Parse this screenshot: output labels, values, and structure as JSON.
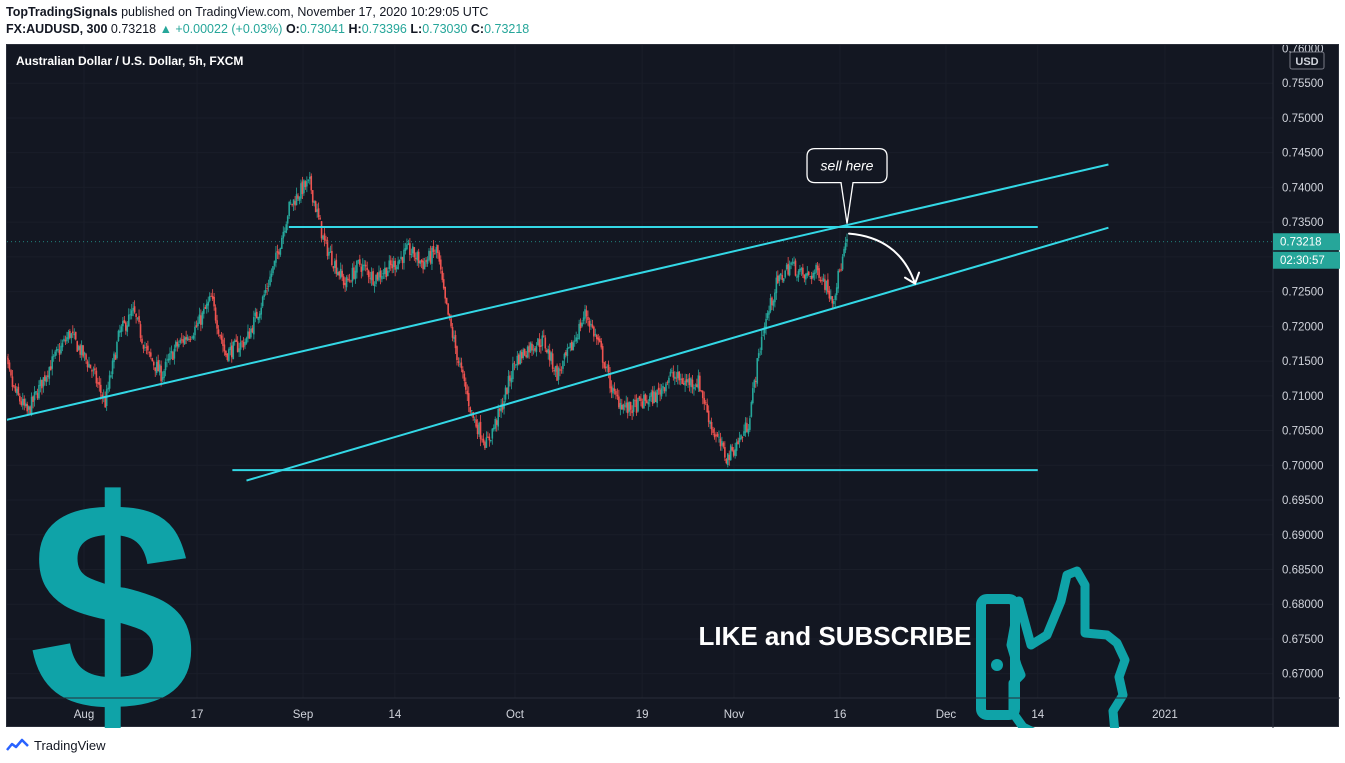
{
  "header": {
    "author": "TopTradingSignals",
    "published": "published on TradingView.com, November 17, 2020 10:29:05 UTC",
    "symbol": "FX:AUDUSD, 300",
    "last": "0.73218",
    "change": "▲ +0.00022 (+0.03%)",
    "o_label": "O:",
    "o": "0.73041",
    "h_label": "H:",
    "h": "0.73396",
    "l_label": "L:",
    "l": "0.73030",
    "c_label": "C:",
    "c": "0.73218"
  },
  "chart_data": {
    "type": "candlestick",
    "title": "Australian Dollar / U.S. Dollar, 5h, FXCM",
    "currency": "USD",
    "y_ticks": [
      "0.75500",
      "0.75000",
      "0.74500",
      "0.74000",
      "0.73500",
      "0.73000",
      "0.72500",
      "0.72000",
      "0.71500",
      "0.71000",
      "0.70500",
      "0.70000",
      "0.69500",
      "0.69000",
      "0.68500",
      "0.68000",
      "0.67500",
      "0.67000"
    ],
    "y_top_partial": "0.76000",
    "ylim": [
      0.6665,
      0.7605
    ],
    "x_ticks": [
      "Aug",
      "17",
      "Sep",
      "14",
      "Oct",
      "19",
      "Nov",
      "16",
      "Dec",
      "14",
      "2021"
    ],
    "x_tick_dates": [
      "2020-08-01",
      "2020-08-17",
      "2020-09-01",
      "2020-09-14",
      "2020-10-01",
      "2020-10-19",
      "2020-11-01",
      "2020-11-16",
      "2020-12-01",
      "2020-12-14",
      "2021-01-01"
    ],
    "price_label": "0.73218",
    "countdown_label": "02:30:57",
    "colors": {
      "up": "#26a69a",
      "down": "#ef5350",
      "line": "#33d8e6",
      "accent": "#0fa3a8",
      "price_tag": "#26a69a"
    },
    "price_path": [
      [
        "2020-07-20",
        0.718
      ],
      [
        "2020-07-22",
        0.711
      ],
      [
        "2020-07-24",
        0.7075
      ],
      [
        "2020-07-27",
        0.714
      ],
      [
        "2020-07-30",
        0.719
      ],
      [
        "2020-08-02",
        0.714
      ],
      [
        "2020-08-04",
        0.709
      ],
      [
        "2020-08-06",
        0.719
      ],
      [
        "2020-08-08",
        0.722
      ],
      [
        "2020-08-10",
        0.716
      ],
      [
        "2020-08-12",
        0.713
      ],
      [
        "2020-08-14",
        0.717
      ],
      [
        "2020-08-17",
        0.72
      ],
      [
        "2020-08-19",
        0.724
      ],
      [
        "2020-08-21",
        0.716
      ],
      [
        "2020-08-24",
        0.718
      ],
      [
        "2020-08-26",
        0.723
      ],
      [
        "2020-08-28",
        0.729
      ],
      [
        "2020-08-30",
        0.737
      ],
      [
        "2020-09-01",
        0.74
      ],
      [
        "2020-09-02",
        0.7405
      ],
      [
        "2020-09-04",
        0.732
      ],
      [
        "2020-09-07",
        0.726
      ],
      [
        "2020-09-09",
        0.729
      ],
      [
        "2020-09-11",
        0.727
      ],
      [
        "2020-09-14",
        0.729
      ],
      [
        "2020-09-16",
        0.731
      ],
      [
        "2020-09-18",
        0.729
      ],
      [
        "2020-09-20",
        0.731
      ],
      [
        "2020-09-21",
        0.724
      ],
      [
        "2020-09-23",
        0.715
      ],
      [
        "2020-09-25",
        0.707
      ],
      [
        "2020-09-27",
        0.703
      ],
      [
        "2020-09-29",
        0.708
      ],
      [
        "2020-10-01",
        0.715
      ],
      [
        "2020-10-03",
        0.717
      ],
      [
        "2020-10-05",
        0.718
      ],
      [
        "2020-10-07",
        0.713
      ],
      [
        "2020-10-09",
        0.717
      ],
      [
        "2020-10-11",
        0.722
      ],
      [
        "2020-10-13",
        0.717
      ],
      [
        "2020-10-15",
        0.71
      ],
      [
        "2020-10-17",
        0.708
      ],
      [
        "2020-10-19",
        0.709
      ],
      [
        "2020-10-21",
        0.71
      ],
      [
        "2020-10-23",
        0.713
      ],
      [
        "2020-10-25",
        0.712
      ],
      [
        "2020-10-27",
        0.712
      ],
      [
        "2020-10-29",
        0.705
      ],
      [
        "2020-10-31",
        0.701
      ],
      [
        "2020-11-02",
        0.704
      ],
      [
        "2020-11-03",
        0.706
      ],
      [
        "2020-11-05",
        0.719
      ],
      [
        "2020-11-07",
        0.726
      ],
      [
        "2020-11-09",
        0.729
      ],
      [
        "2020-11-11",
        0.727
      ],
      [
        "2020-11-13",
        0.728
      ],
      [
        "2020-11-15",
        0.724
      ],
      [
        "2020-11-17",
        0.7322
      ]
    ],
    "lines": [
      {
        "name": "upper-trendline",
        "from": [
          "2020-07-20",
          0.7063
        ],
        "to": [
          "2020-12-24",
          0.7433
        ]
      },
      {
        "name": "lower-trendline",
        "from": [
          "2020-08-24",
          0.6978
        ],
        "to": [
          "2020-12-24",
          0.7342
        ]
      },
      {
        "name": "resistance-line",
        "from": [
          "2020-08-30",
          0.7343
        ],
        "to": [
          "2020-12-14",
          0.7343
        ]
      },
      {
        "name": "support-line",
        "from": [
          "2020-08-22",
          0.6993
        ],
        "to": [
          "2020-12-14",
          0.6993
        ]
      }
    ],
    "annotation": {
      "text": "sell here",
      "date": "2020-11-17",
      "price": 0.7345
    },
    "overlay_text": "LIKE and SUBSCRIBE",
    "dollar_glyph": "$"
  },
  "footer": {
    "brand": "TradingView"
  }
}
